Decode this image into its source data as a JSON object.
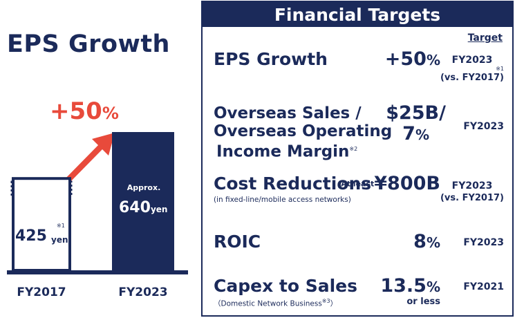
{
  "left": {
    "title": "EPS Growth",
    "growth_big": "+50",
    "growth_pct": "%"
  },
  "chart_data": {
    "type": "bar",
    "title": "EPS Growth",
    "categories": [
      "FY2017",
      "FY2023"
    ],
    "values": [
      425,
      640
    ],
    "unit": "yen",
    "annotations": {
      "fy2017_value": "425",
      "fy2017_note": "※1",
      "fy2017_unit": "yen",
      "fy2023_prefix": "Approx.",
      "fy2023_value": "640",
      "fy2023_unit": "yen",
      "growth": "+50%"
    },
    "colors": {
      "fy2017_bar": "#ffffff",
      "fy2023_bar": "#1b2a5a",
      "arrow": "#e84a3b",
      "outline": "#1b2a5a"
    }
  },
  "panel": {
    "title": "Financial Targets",
    "target_header": "Target",
    "rows": [
      {
        "metric": "EPS Growth",
        "value": "+50",
        "value_pct": "%",
        "target": "FY2023",
        "target_note": "※1",
        "target_sub": "(vs. FY2017)"
      },
      {
        "metric_l1": "Overseas Sales /",
        "metric_l2": "Overseas Operating",
        "metric_l3": "Income Margin",
        "metric_note": "※2",
        "value_l1": "$25B/",
        "value_l2": "7",
        "value_l2_pct": "%",
        "target": "FY2023"
      },
      {
        "metric": "Cost Reductions",
        "value_prefix": "At least",
        "value": "¥800B",
        "sub": "(in fixed-line/mobile access networks)",
        "target": "FY2023",
        "target_sub": "(vs. FY2017)"
      },
      {
        "metric": "ROIC",
        "value": "8",
        "value_pct": "%",
        "target": "FY2023"
      },
      {
        "metric": "Capex to Sales",
        "sub_open": "（Domestic Network Business",
        "sub_note": "※3",
        "sub_close": "）",
        "value": "13.5",
        "value_pct": "%",
        "value_sub": "or less",
        "target": "FY2021"
      }
    ]
  }
}
